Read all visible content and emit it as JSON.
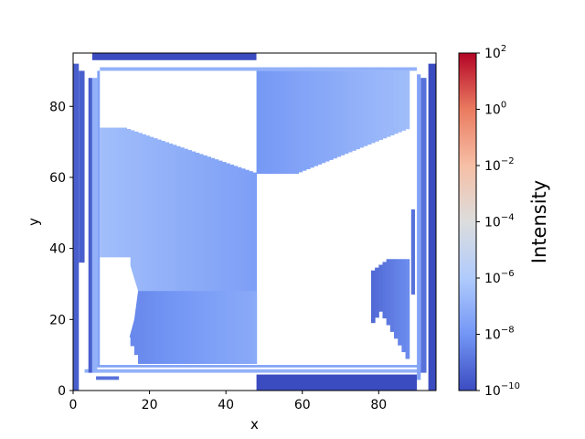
{
  "colors": {
    "cmap": [
      "#3b4cc0",
      "#7396f5",
      "#b0cbfc",
      "#dcdddd",
      "#f6bfa6",
      "#ea7b60",
      "#b40426"
    ],
    "axis": "#000000"
  },
  "chart_data": {
    "type": "heatmap",
    "title": "",
    "xlabel": "x",
    "ylabel": "y",
    "xlim": [
      0,
      95
    ],
    "ylim": [
      0,
      95
    ],
    "xticks": [
      0,
      20,
      40,
      60,
      80
    ],
    "yticks": [
      0,
      20,
      40,
      60,
      80
    ],
    "xtick_labels": [
      "0",
      "20",
      "40",
      "60",
      "80"
    ],
    "ytick_labels": [
      "0",
      "20",
      "40",
      "60",
      "80"
    ],
    "colorbar": {
      "label": "Intensity",
      "scale": "log",
      "range": [
        1e-10,
        100
      ],
      "tick_base": "10",
      "tick_exponents": [
        "−10",
        "−8",
        "−6",
        "−4",
        "−2",
        "0",
        "2"
      ]
    },
    "regions": [
      {
        "x0": 5,
        "x1": 48,
        "y0": 93,
        "y1": 95,
        "log10": -10
      },
      {
        "x0": 48,
        "x1": 90,
        "y0": 93,
        "y1": 95,
        "log10": null
      },
      {
        "x0": 7,
        "x1": 90,
        "y0": 90,
        "y1": 91,
        "log10": -7
      },
      {
        "x0": 48,
        "x1": 90,
        "y0": 0,
        "y1": 4.5,
        "log10": -10
      },
      {
        "x0": 3,
        "x1": 92,
        "y0": 5,
        "y1": 6,
        "log10": -7
      },
      {
        "x0": 6,
        "x1": 91,
        "y0": 6.5,
        "y1": 7.2,
        "log10": -7.5
      },
      {
        "x0": 6,
        "x1": 12,
        "y0": 3,
        "y1": 4,
        "log10": -9
      },
      {
        "x0": 0,
        "x1": 1.5,
        "y0": 0,
        "y1": 92,
        "log10": -9.5
      },
      {
        "x0": 1.5,
        "x1": 3,
        "y0": 36,
        "y1": 90,
        "log10": -9.5
      },
      {
        "x0": 4,
        "x1": 5,
        "y0": 5,
        "y1": 88,
        "log10": -9.5
      },
      {
        "x0": 5,
        "x1": 6.3,
        "y0": 5,
        "y1": 88,
        "log10": -7
      },
      {
        "x0": 6.3,
        "x1": 7,
        "y0": 7,
        "y1": 90,
        "log10": -7.5
      },
      {
        "x0": 93,
        "x1": 95,
        "y0": 0,
        "y1": 92,
        "log10": -10
      },
      {
        "x0": 91,
        "x1": 92.5,
        "y0": 5,
        "y1": 88,
        "log10": -9
      },
      {
        "x0": 90,
        "x1": 91,
        "y0": 3,
        "y1": 89,
        "log10": -7.5
      },
      {
        "x0": 88.5,
        "x1": 89.5,
        "y0": 27,
        "y1": 51,
        "log10": -9
      }
    ],
    "gradient_regions": [
      {
        "side": "left",
        "x0": 7,
        "x1": 48,
        "y_bottom": 7.5,
        "log10_min": -9.5,
        "log10_max": -6.5
      },
      {
        "side": "right_top",
        "x0": 48,
        "x1": 88,
        "y_top": 90,
        "log10_min": -9.5,
        "log10_max": -6.5
      },
      {
        "side": "right_bottom",
        "x0": 78,
        "x1": 88,
        "log10_min": -9.2,
        "log10_max": -8
      }
    ]
  }
}
